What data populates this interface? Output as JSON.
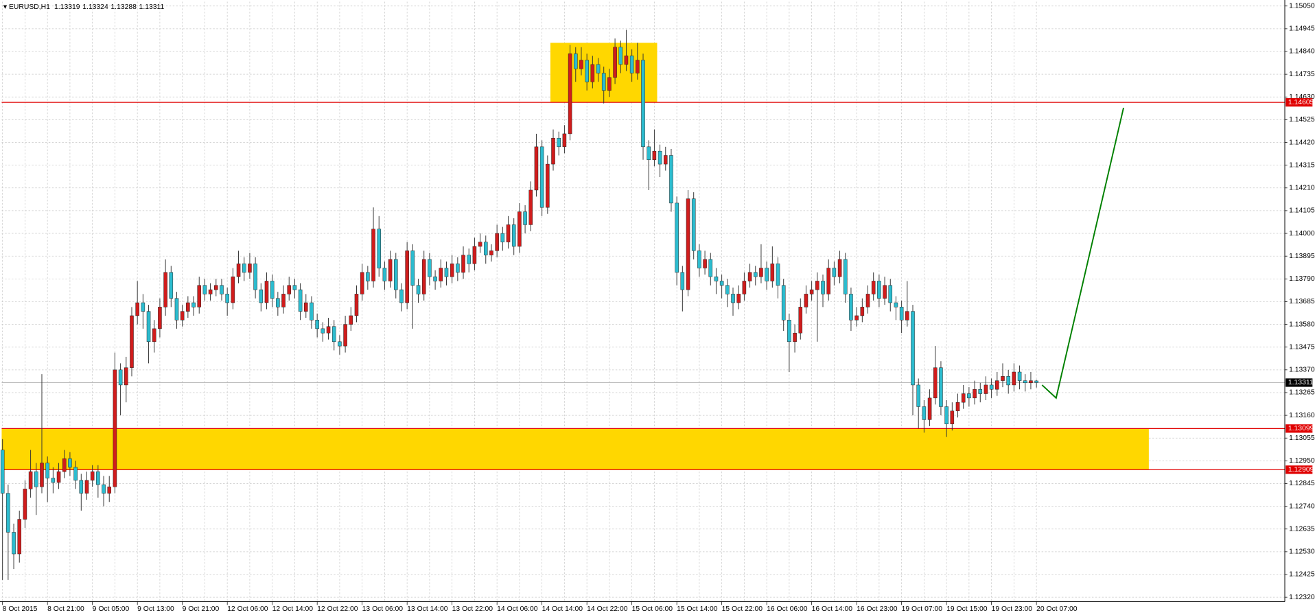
{
  "chart_data": {
    "type": "candlestick",
    "symbol": "EURUSD,H1",
    "up_color": "#d01c1c",
    "down_color": "#2cbccf",
    "wick_color": "#333333",
    "grid": true,
    "xlim": [
      -0.15,
      228.2
    ],
    "ylim": [
      1.123,
      1.1507
    ],
    "yticks": [
      {
        "value": 1.1505,
        "label": "1.15050"
      },
      1.14945,
      {
        "value": 1.1484,
        "label": "1.14840"
      },
      1.14735,
      {
        "value": 1.1463,
        "label": "1.14630"
      },
      1.14525,
      {
        "value": 1.1442,
        "label": "1.14420"
      },
      1.14315,
      {
        "value": 1.1421,
        "label": "1.14210"
      },
      1.14105,
      {
        "value": 1.14,
        "label": "1.14000"
      },
      1.13895,
      {
        "value": 1.1379,
        "label": "1.13790"
      },
      1.13685,
      {
        "value": 1.1358,
        "label": "1.13580"
      },
      1.13475,
      {
        "value": 1.1337,
        "label": "1.13370"
      },
      1.13265,
      {
        "value": 1.1316,
        "label": "1.13160"
      },
      1.13055,
      {
        "value": 1.1295,
        "label": "1.12950"
      },
      1.12845,
      {
        "value": 1.1274,
        "label": "1.12740"
      },
      1.12635,
      {
        "value": 1.1253,
        "label": "1.12530"
      },
      1.12425,
      {
        "value": 1.1232,
        "label": "1.12320"
      }
    ],
    "categories": [
      "8 Oct 2015",
      null,
      null,
      null,
      null,
      null,
      null,
      null,
      "8 Oct 21:00",
      null,
      null,
      null,
      null,
      null,
      null,
      null,
      "9 Oct 05:00",
      null,
      null,
      null,
      null,
      null,
      null,
      null,
      "9 Oct 13:00",
      null,
      null,
      null,
      null,
      null,
      null,
      null,
      "9 Oct 21:00",
      null,
      null,
      null,
      null,
      null,
      null,
      null,
      "12 Oct 06:00",
      null,
      null,
      null,
      null,
      null,
      null,
      null,
      "12 Oct 14:00",
      null,
      null,
      null,
      null,
      null,
      null,
      null,
      "12 Oct 22:00",
      null,
      null,
      null,
      null,
      null,
      null,
      null,
      "13 Oct 06:00",
      null,
      null,
      null,
      null,
      null,
      null,
      null,
      "13 Oct 14:00",
      null,
      null,
      null,
      null,
      null,
      null,
      null,
      "13 Oct 22:00",
      null,
      null,
      null,
      null,
      null,
      null,
      null,
      "14 Oct 06:00",
      null,
      null,
      null,
      null,
      null,
      null,
      null,
      "14 Oct 14:00",
      null,
      null,
      null,
      null,
      null,
      null,
      null,
      "14 Oct 22:00",
      null,
      null,
      null,
      null,
      null,
      null,
      null,
      "15 Oct 06:00",
      null,
      null,
      null,
      null,
      null,
      null,
      null,
      "15 Oct 14:00",
      null,
      null,
      null,
      null,
      null,
      null,
      null,
      "15 Oct 22:00",
      null,
      null,
      null,
      null,
      null,
      null,
      null,
      "16 Oct 06:00",
      null,
      null,
      null,
      null,
      null,
      null,
      null,
      "16 Oct 14:00",
      null,
      null,
      null,
      null,
      null,
      null,
      null,
      "16 Oct 23:00",
      null,
      null,
      null,
      null,
      null,
      null,
      null,
      "19 Oct 07:00",
      null,
      null,
      null,
      null,
      null,
      null,
      null,
      "19 Oct 15:00",
      null,
      null,
      null,
      null,
      null,
      null,
      null,
      "19 Oct 23:00",
      null,
      null,
      null,
      null,
      null,
      null,
      null,
      "20 Oct 07:00"
    ],
    "values": [
      [
        1.13,
        1.1305,
        1.124,
        1.128
      ],
      [
        1.128,
        1.1284,
        1.124,
        1.1262
      ],
      [
        1.1262,
        1.1266,
        1.1245,
        1.1252
      ],
      [
        1.1252,
        1.1272,
        1.1248,
        1.1268
      ],
      [
        1.1268,
        1.1286,
        1.1264,
        1.1282
      ],
      [
        1.1282,
        1.13,
        1.1278,
        1.129
      ],
      [
        1.129,
        1.1294,
        1.127,
        1.1283
      ],
      [
        1.1283,
        1.1335,
        1.128,
        1.1294
      ],
      [
        1.1294,
        1.1297,
        1.1276,
        1.1287
      ],
      [
        1.1287,
        1.1292,
        1.128,
        1.1285
      ],
      [
        1.1285,
        1.1294,
        1.1282,
        1.129
      ],
      [
        1.129,
        1.13,
        1.1287,
        1.1296
      ],
      [
        1.1296,
        1.1299,
        1.1288,
        1.1292
      ],
      [
        1.1292,
        1.1295,
        1.1282,
        1.1286
      ],
      [
        1.1286,
        1.1289,
        1.1272,
        1.128
      ],
      [
        1.128,
        1.129,
        1.1277,
        1.1286
      ],
      [
        1.1286,
        1.1293,
        1.1283,
        1.129
      ],
      [
        1.129,
        1.1293,
        1.1278,
        1.1284
      ],
      [
        1.1284,
        1.1288,
        1.1274,
        1.128
      ],
      [
        1.128,
        1.1288,
        1.1276,
        1.1283
      ],
      [
        1.1283,
        1.1345,
        1.128,
        1.1337
      ],
      [
        1.1337,
        1.134,
        1.1316,
        1.133
      ],
      [
        1.133,
        1.1343,
        1.1322,
        1.1338
      ],
      [
        1.1338,
        1.1366,
        1.1334,
        1.1362
      ],
      [
        1.1362,
        1.1378,
        1.1358,
        1.1368
      ],
      [
        1.1368,
        1.1372,
        1.1356,
        1.1364
      ],
      [
        1.1364,
        1.1367,
        1.134,
        1.135
      ],
      [
        1.135,
        1.136,
        1.1345,
        1.1356
      ],
      [
        1.1356,
        1.137,
        1.1352,
        1.1366
      ],
      [
        1.1366,
        1.1388,
        1.1362,
        1.1382
      ],
      [
        1.1382,
        1.1385,
        1.1366,
        1.137
      ],
      [
        1.137,
        1.1373,
        1.1356,
        1.136
      ],
      [
        1.136,
        1.1367,
        1.1357,
        1.1364
      ],
      [
        1.1364,
        1.1371,
        1.1361,
        1.1368
      ],
      [
        1.1368,
        1.1371,
        1.1362,
        1.1366
      ],
      [
        1.1366,
        1.138,
        1.1363,
        1.1376
      ],
      [
        1.1376,
        1.1379,
        1.1369,
        1.1372
      ],
      [
        1.1372,
        1.1377,
        1.1369,
        1.1374
      ],
      [
        1.1374,
        1.1379,
        1.1371,
        1.1376
      ],
      [
        1.1376,
        1.1379,
        1.1369,
        1.1372
      ],
      [
        1.1372,
        1.1375,
        1.1362,
        1.1368
      ],
      [
        1.1368,
        1.1384,
        1.1365,
        1.138
      ],
      [
        1.138,
        1.1392,
        1.1377,
        1.1386
      ],
      [
        1.1386,
        1.1389,
        1.1378,
        1.1382
      ],
      [
        1.1382,
        1.1391,
        1.1379,
        1.1386
      ],
      [
        1.1386,
        1.1389,
        1.137,
        1.1374
      ],
      [
        1.1374,
        1.1377,
        1.1364,
        1.1368
      ],
      [
        1.1368,
        1.1382,
        1.1365,
        1.1378
      ],
      [
        1.1378,
        1.1381,
        1.1366,
        1.137
      ],
      [
        1.137,
        1.1373,
        1.1362,
        1.1366
      ],
      [
        1.1366,
        1.1376,
        1.1363,
        1.1372
      ],
      [
        1.1372,
        1.138,
        1.1369,
        1.1376
      ],
      [
        1.1376,
        1.1379,
        1.137,
        1.1374
      ],
      [
        1.1374,
        1.1377,
        1.136,
        1.1364
      ],
      [
        1.1364,
        1.1372,
        1.1361,
        1.1368
      ],
      [
        1.1368,
        1.1371,
        1.1356,
        1.136
      ],
      [
        1.136,
        1.1363,
        1.1352,
        1.1356
      ],
      [
        1.1356,
        1.1359,
        1.135,
        1.1354
      ],
      [
        1.1354,
        1.1361,
        1.1351,
        1.1357
      ],
      [
        1.1357,
        1.136,
        1.1346,
        1.135
      ],
      [
        1.135,
        1.1353,
        1.1344,
        1.1348
      ],
      [
        1.1348,
        1.1362,
        1.1345,
        1.1358
      ],
      [
        1.1358,
        1.1366,
        1.1355,
        1.1362
      ],
      [
        1.1362,
        1.1376,
        1.1359,
        1.1372
      ],
      [
        1.1372,
        1.1386,
        1.1369,
        1.1382
      ],
      [
        1.1382,
        1.1385,
        1.1374,
        1.1378
      ],
      [
        1.1378,
        1.1412,
        1.1375,
        1.1402
      ],
      [
        1.1402,
        1.1408,
        1.138,
        1.1384
      ],
      [
        1.1384,
        1.1387,
        1.1374,
        1.1378
      ],
      [
        1.1378,
        1.1392,
        1.1375,
        1.1388
      ],
      [
        1.1388,
        1.1391,
        1.137,
        1.1374
      ],
      [
        1.1374,
        1.1377,
        1.1364,
        1.1368
      ],
      [
        1.1368,
        1.1396,
        1.1365,
        1.1392
      ],
      [
        1.1392,
        1.1395,
        1.1356,
        1.1376
      ],
      [
        1.1376,
        1.1379,
        1.1368,
        1.1372
      ],
      [
        1.1372,
        1.1392,
        1.1369,
        1.1388
      ],
      [
        1.1388,
        1.1391,
        1.1376,
        1.138
      ],
      [
        1.138,
        1.1383,
        1.1374,
        1.1378
      ],
      [
        1.1378,
        1.1388,
        1.1375,
        1.1384
      ],
      [
        1.1384,
        1.1387,
        1.1376,
        1.138
      ],
      [
        1.138,
        1.139,
        1.1377,
        1.1386
      ],
      [
        1.1386,
        1.1389,
        1.1378,
        1.1382
      ],
      [
        1.1382,
        1.1394,
        1.1379,
        1.139
      ],
      [
        1.139,
        1.1393,
        1.1382,
        1.1386
      ],
      [
        1.1386,
        1.1398,
        1.1383,
        1.1394
      ],
      [
        1.1394,
        1.14,
        1.1391,
        1.1396
      ],
      [
        1.1396,
        1.1399,
        1.1386,
        1.139
      ],
      [
        1.139,
        1.1395,
        1.1387,
        1.1392
      ],
      [
        1.1392,
        1.1404,
        1.1389,
        1.14
      ],
      [
        1.14,
        1.1403,
        1.1392,
        1.1396
      ],
      [
        1.1396,
        1.1408,
        1.1393,
        1.1404
      ],
      [
        1.1404,
        1.1407,
        1.139,
        1.1394
      ],
      [
        1.1394,
        1.1414,
        1.1391,
        1.141
      ],
      [
        1.141,
        1.1413,
        1.14,
        1.1404
      ],
      [
        1.1404,
        1.1424,
        1.1401,
        1.142
      ],
      [
        1.142,
        1.1446,
        1.1417,
        1.144
      ],
      [
        1.144,
        1.1443,
        1.1408,
        1.1412
      ],
      [
        1.1412,
        1.1436,
        1.1409,
        1.1432
      ],
      [
        1.1432,
        1.1448,
        1.1429,
        1.1444
      ],
      [
        1.1444,
        1.1447,
        1.1436,
        1.144
      ],
      [
        1.144,
        1.145,
        1.1437,
        1.1446
      ],
      [
        1.1446,
        1.1487,
        1.1443,
        1.1483
      ],
      [
        1.1483,
        1.1486,
        1.147,
        1.1476
      ],
      [
        1.1476,
        1.1486,
        1.1473,
        1.148
      ],
      [
        1.148,
        1.1483,
        1.1466,
        1.147
      ],
      [
        1.147,
        1.1482,
        1.1467,
        1.1478
      ],
      [
        1.1478,
        1.1481,
        1.147,
        1.1474
      ],
      [
        1.1474,
        1.1477,
        1.146,
        1.1466
      ],
      [
        1.1466,
        1.1476,
        1.1463,
        1.1472
      ],
      [
        1.1472,
        1.149,
        1.1469,
        1.1486
      ],
      [
        1.1486,
        1.1489,
        1.1474,
        1.1478
      ],
      [
        1.1478,
        1.1494,
        1.1475,
        1.1482
      ],
      [
        1.1482,
        1.1485,
        1.147,
        1.1474
      ],
      [
        1.1474,
        1.1488,
        1.1471,
        1.148
      ],
      [
        1.148,
        1.1483,
        1.1434,
        1.144
      ],
      [
        1.144,
        1.1443,
        1.142,
        1.1434
      ],
      [
        1.1434,
        1.1448,
        1.1431,
        1.1438
      ],
      [
        1.1438,
        1.1441,
        1.1426,
        1.1432
      ],
      [
        1.1432,
        1.144,
        1.1429,
        1.1436
      ],
      [
        1.1436,
        1.1439,
        1.141,
        1.1414
      ],
      [
        1.1414,
        1.1417,
        1.1376,
        1.1382
      ],
      [
        1.1382,
        1.1385,
        1.1364,
        1.1374
      ],
      [
        1.1374,
        1.142,
        1.1371,
        1.1416
      ],
      [
        1.1416,
        1.1419,
        1.1388,
        1.1392
      ],
      [
        1.1392,
        1.1395,
        1.138,
        1.1384
      ],
      [
        1.1384,
        1.1392,
        1.1381,
        1.1388
      ],
      [
        1.1388,
        1.1391,
        1.1376,
        1.138
      ],
      [
        1.138,
        1.1384,
        1.1372,
        1.1378
      ],
      [
        1.1378,
        1.1381,
        1.137,
        1.1376
      ],
      [
        1.1376,
        1.1379,
        1.1366,
        1.1372
      ],
      [
        1.1372,
        1.1375,
        1.1362,
        1.1368
      ],
      [
        1.1368,
        1.1376,
        1.1365,
        1.1372
      ],
      [
        1.1372,
        1.1382,
        1.1369,
        1.1378
      ],
      [
        1.1378,
        1.1386,
        1.1375,
        1.1382
      ],
      [
        1.1382,
        1.1385,
        1.1376,
        1.138
      ],
      [
        1.138,
        1.1395,
        1.1377,
        1.1384
      ],
      [
        1.1384,
        1.1387,
        1.1374,
        1.1378
      ],
      [
        1.1378,
        1.1394,
        1.1375,
        1.1386
      ],
      [
        1.1386,
        1.1389,
        1.137,
        1.1376
      ],
      [
        1.1376,
        1.1379,
        1.1355,
        1.136
      ],
      [
        1.136,
        1.1363,
        1.1336,
        1.135
      ],
      [
        1.135,
        1.1358,
        1.1345,
        1.1354
      ],
      [
        1.1354,
        1.137,
        1.1351,
        1.1366
      ],
      [
        1.1366,
        1.1376,
        1.1363,
        1.1372
      ],
      [
        1.1372,
        1.1378,
        1.1369,
        1.1374
      ],
      [
        1.1374,
        1.1382,
        1.135,
        1.1378
      ],
      [
        1.1378,
        1.1381,
        1.1366,
        1.1372
      ],
      [
        1.1372,
        1.1388,
        1.1369,
        1.1384
      ],
      [
        1.1384,
        1.1387,
        1.1376,
        1.138
      ],
      [
        1.138,
        1.1392,
        1.1377,
        1.1388
      ],
      [
        1.1388,
        1.1391,
        1.1368,
        1.1372
      ],
      [
        1.1372,
        1.1375,
        1.1355,
        1.136
      ],
      [
        1.136,
        1.1366,
        1.1357,
        1.1362
      ],
      [
        1.1362,
        1.137,
        1.1359,
        1.1366
      ],
      [
        1.1366,
        1.1376,
        1.1363,
        1.1372
      ],
      [
        1.1372,
        1.1382,
        1.1369,
        1.1378
      ],
      [
        1.1378,
        1.1381,
        1.1366,
        1.137
      ],
      [
        1.137,
        1.138,
        1.1367,
        1.1376
      ],
      [
        1.1376,
        1.1379,
        1.1364,
        1.1368
      ],
      [
        1.1368,
        1.1371,
        1.136,
        1.1366
      ],
      [
        1.1366,
        1.1369,
        1.1354,
        1.136
      ],
      [
        1.136,
        1.1378,
        1.1357,
        1.1364
      ],
      [
        1.1364,
        1.1367,
        1.1316,
        1.133
      ],
      [
        1.133,
        1.1333,
        1.131,
        1.132
      ],
      [
        1.132,
        1.1323,
        1.1308,
        1.1314
      ],
      [
        1.1314,
        1.1328,
        1.1311,
        1.1324
      ],
      [
        1.1324,
        1.1348,
        1.1321,
        1.1338
      ],
      [
        1.1338,
        1.1341,
        1.1316,
        1.132
      ],
      [
        1.132,
        1.1323,
        1.1306,
        1.1312
      ],
      [
        1.1312,
        1.1322,
        1.1309,
        1.1318
      ],
      [
        1.1318,
        1.1326,
        1.1315,
        1.1322
      ],
      [
        1.1322,
        1.133,
        1.1319,
        1.1326
      ],
      [
        1.1326,
        1.1329,
        1.132,
        1.1324
      ],
      [
        1.1324,
        1.1332,
        1.1321,
        1.1328
      ],
      [
        1.1328,
        1.1331,
        1.1322,
        1.1326
      ],
      [
        1.1326,
        1.1334,
        1.1323,
        1.133
      ],
      [
        1.133,
        1.1333,
        1.1324,
        1.1328
      ],
      [
        1.1328,
        1.1336,
        1.1325,
        1.1332
      ],
      [
        1.1332,
        1.134,
        1.1329,
        1.1334
      ],
      [
        1.1334,
        1.1337,
        1.1326,
        1.133
      ],
      [
        1.133,
        1.134,
        1.1327,
        1.1336
      ],
      [
        1.1336,
        1.1339,
        1.1328,
        1.1332
      ],
      [
        1.1332,
        1.1335,
        1.1327,
        1.1331
      ],
      [
        1.1331,
        1.1336,
        1.1328,
        1.1332
      ],
      [
        1.13319,
        1.13324,
        1.13288,
        1.13311
      ]
    ],
    "price_line_color": "#b8b8b8",
    "levels": [
      {
        "value": 1.14605,
        "color": "#e00000"
      },
      {
        "value": 1.13099,
        "color": "#e00000"
      },
      {
        "value": 1.12909,
        "color": "#e00000"
      }
    ],
    "zones": [
      {
        "x": [
          97.5,
          116.5
        ],
        "y": [
          1.14605,
          1.1488
        ],
        "color": "#ffd700"
      },
      {
        "x": [
          -0.15,
          204
        ],
        "y": [
          1.12909,
          1.13099
        ],
        "color": "#ffd700"
      }
    ],
    "arrow": {
      "points": [
        [
          185,
          1.133
        ],
        [
          187.5,
          1.1324
        ],
        [
          199.5,
          1.1458
        ]
      ],
      "color": "#008000"
    }
  }
}
